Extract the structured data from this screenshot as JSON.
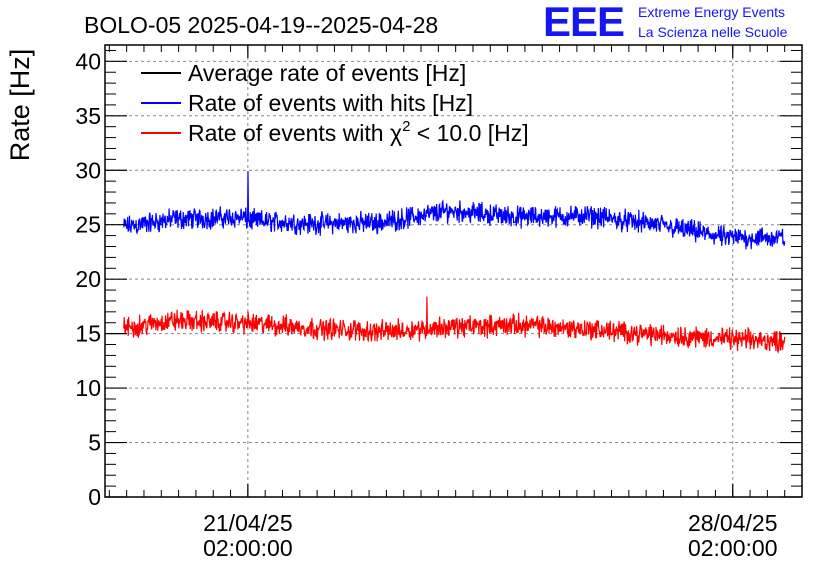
{
  "header": {
    "title": "BOLO-05 2025-04-19--2025-04-28",
    "logo_text": "EEE",
    "logo_line1": "Extreme Energy Events",
    "logo_line2": "La Scienza nelle Scuole"
  },
  "colors": {
    "average": "#000000",
    "hits": "#0000ff",
    "chi2": "#ff0000",
    "grid": "#888888",
    "logo": "#1515f5"
  },
  "chart_data": {
    "type": "line",
    "ylabel": "Rate [Hz]",
    "ylim": [
      0,
      41.5
    ],
    "yticks": [
      0,
      5,
      10,
      15,
      20,
      25,
      30,
      35,
      40
    ],
    "xlim": [
      "2025-04-19 00:30",
      "2025-04-29 02:00"
    ],
    "xticks": [
      {
        "date": "21/04/25",
        "time": "02:00:00",
        "x": "2025-04-21 02:00"
      },
      {
        "date": "28/04/25",
        "time": "02:00:00",
        "x": "2025-04-28 02:00"
      }
    ],
    "grid": true,
    "legend_position": "top-left",
    "legend": [
      {
        "key": "average",
        "pre": "Average rate of events [Hz]",
        "sup": "",
        "post": ""
      },
      {
        "key": "hits",
        "pre": "Rate of events with hits [Hz]",
        "sup": "",
        "post": ""
      },
      {
        "key": "chi2",
        "pre": "Rate of events with χ",
        "sup": "2",
        "post": " < 10.0 [Hz]"
      }
    ],
    "series": [
      {
        "name": "Rate of events with hits [Hz]",
        "key": "hits",
        "x": [
          "2025-04-19 07:00",
          "2025-04-20 00:00",
          "2025-04-21 00:00",
          "2025-04-21 02:00",
          "2025-04-22 00:00",
          "2025-04-23 00:00",
          "2025-04-24 00:00",
          "2025-04-25 00:00",
          "2025-04-26 00:00",
          "2025-04-27 00:00",
          "2025-04-28 00:00",
          "2025-04-28 20:00"
        ],
        "values": [
          24.8,
          25.5,
          25.7,
          25.4,
          25.1,
          25.2,
          26.3,
          25.7,
          25.8,
          25.0,
          23.8,
          23.8
        ],
        "noise_amplitude": 1.0,
        "spikes": [
          {
            "x": "2025-04-21 02:00",
            "value": 29.9
          }
        ]
      },
      {
        "name": "Rate of events with χ2 < 10.0 [Hz]",
        "key": "chi2",
        "x": [
          "2025-04-19 07:00",
          "2025-04-20 00:00",
          "2025-04-21 00:00",
          "2025-04-22 00:00",
          "2025-04-23 00:00",
          "2025-04-24 00:00",
          "2025-04-25 00:00",
          "2025-04-26 00:00",
          "2025-04-27 00:00",
          "2025-04-28 00:00",
          "2025-04-28 20:00"
        ],
        "values": [
          15.5,
          16.2,
          16.0,
          15.5,
          15.2,
          15.6,
          15.8,
          15.4,
          14.9,
          14.5,
          14.3
        ],
        "noise_amplitude": 1.0,
        "spikes": [
          {
            "x": "2025-04-23 16:00",
            "value": 18.4
          }
        ]
      }
    ]
  }
}
